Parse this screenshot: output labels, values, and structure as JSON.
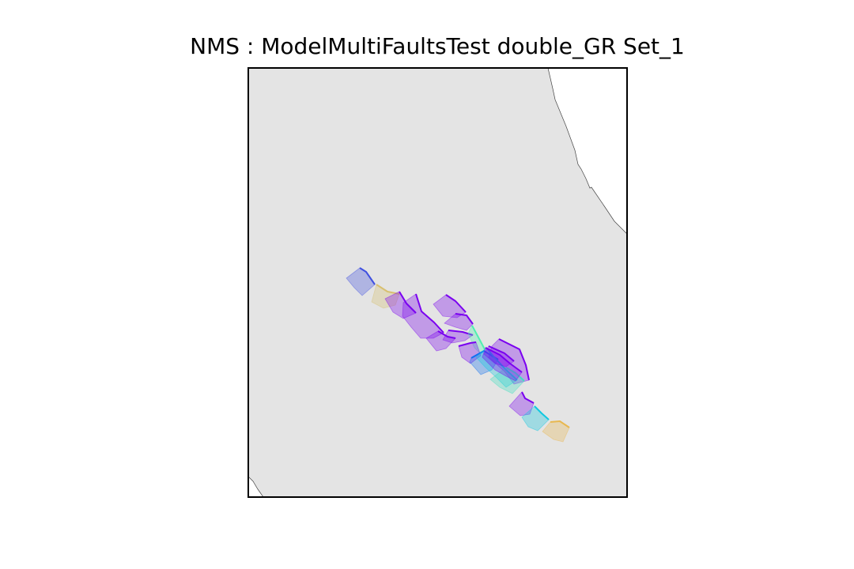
{
  "title": "NMS : ModelMultiFaultsTest double_GR Set_1",
  "colors": {
    "land": "#e4e4e4",
    "sea": "#ffffff",
    "coastline": "#444444",
    "frame": "#000000"
  },
  "faults": [
    {
      "name": "fault-1",
      "color": "#4050e0"
    },
    {
      "name": "fault-2",
      "color": "#d8c070"
    },
    {
      "name": "fault-3",
      "color": "#7a00f0"
    },
    {
      "name": "fault-4",
      "color": "#7a00f0"
    },
    {
      "name": "fault-5",
      "color": "#7a00f0"
    },
    {
      "name": "fault-6",
      "color": "#7a00f0"
    },
    {
      "name": "fault-7",
      "color": "#7a00f0"
    },
    {
      "name": "fault-8",
      "color": "#7a00f0"
    },
    {
      "name": "fault-9",
      "color": "#50f0b0"
    },
    {
      "name": "fault-10",
      "color": "#7a00f0"
    },
    {
      "name": "fault-11",
      "color": "#7a00f0"
    },
    {
      "name": "fault-12",
      "color": "#1070f0"
    },
    {
      "name": "fault-13",
      "color": "#10c8e0"
    },
    {
      "name": "fault-14",
      "color": "#40e0c0"
    },
    {
      "name": "fault-15",
      "color": "#7a00f0"
    },
    {
      "name": "fault-16",
      "color": "#7a00f0"
    },
    {
      "name": "fault-17",
      "color": "#7a00f0"
    },
    {
      "name": "fault-18",
      "color": "#10c8e0"
    },
    {
      "name": "fault-19",
      "color": "#e8b850"
    }
  ]
}
